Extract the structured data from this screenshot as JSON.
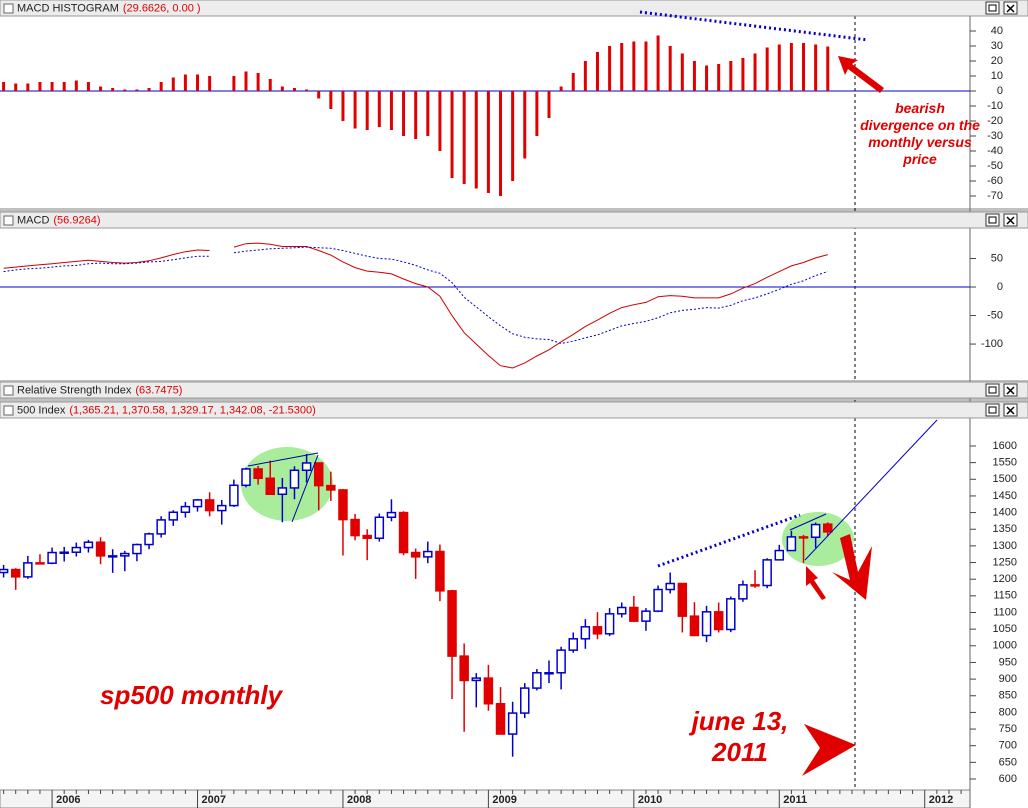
{
  "chart_data": [
    {
      "type": "bar",
      "title": "MACD HISTOGRAM",
      "readout": "(29.6626, 0.00 )",
      "color": "#e00000",
      "zero_line": true,
      "zero_color": "#0000cc",
      "ylim": [
        -78,
        50
      ],
      "yticks": [
        40,
        30,
        20,
        10,
        0,
        -10,
        -20,
        -30,
        -40,
        -50,
        -60,
        -70
      ],
      "annotation": "bearish divergence on the monthly versus price",
      "values": [
        6,
        5,
        5,
        6,
        6,
        6,
        7,
        6,
        3,
        2,
        1,
        1,
        2,
        6,
        9,
        11,
        11,
        10,
        null,
        10,
        13,
        12,
        8,
        3,
        2,
        1,
        -5,
        -12,
        -20,
        -25,
        -26,
        -24,
        -26,
        -30,
        -32,
        -30,
        -40,
        -58,
        -62,
        -65,
        -68,
        -70,
        -60,
        -45,
        -30,
        -18,
        3,
        12,
        20,
        26,
        30,
        32,
        33,
        33,
        37,
        30,
        25,
        20,
        17,
        18,
        20,
        22,
        25,
        29,
        31,
        32,
        32,
        31,
        29.6626,
        null,
        null,
        null,
        null,
        null,
        null,
        null,
        null,
        null,
        null,
        null
      ]
    },
    {
      "type": "line",
      "title": "MACD",
      "readout": "(56.9264)",
      "zero_line": true,
      "zero_color": "#0000cc",
      "ylim": [
        -163,
        100
      ],
      "yticks": [
        50,
        0,
        -50,
        -100
      ],
      "series": [
        {
          "color": "#d00000",
          "dash": false,
          "values": [
            33,
            35,
            37,
            39,
            41,
            43,
            45,
            47,
            45,
            43,
            42,
            43,
            46,
            51,
            57,
            62,
            65,
            64,
            null,
            70,
            76,
            77,
            75,
            71,
            71,
            71,
            64,
            56,
            44,
            34,
            28,
            26,
            23,
            14,
            6,
            0,
            -16,
            -50,
            -80,
            -100,
            -120,
            -138,
            -142,
            -133,
            -121,
            -110,
            -96,
            -83,
            -69,
            -58,
            -46,
            -36,
            -31,
            -27,
            -17,
            -15,
            -16,
            -19,
            -19,
            -19,
            -12,
            -2,
            6,
            17,
            27,
            37,
            43,
            51,
            56.9264,
            null,
            null,
            null,
            null,
            null,
            null,
            null,
            null,
            null,
            null,
            null
          ]
        },
        {
          "color": "#0000cc",
          "dash": true,
          "values": [
            27,
            30,
            32,
            33,
            35,
            37,
            38,
            41,
            42,
            41,
            41,
            42,
            44,
            45,
            48,
            51,
            54,
            54,
            null,
            60,
            63,
            65,
            67,
            68,
            69,
            70,
            69,
            68,
            64,
            59,
            54,
            50,
            49,
            44,
            38,
            30,
            24,
            8,
            -18,
            -35,
            -52,
            -68,
            -82,
            -88,
            -91,
            -92,
            -99,
            -95,
            -89,
            -84,
            -76,
            -68,
            -64,
            -60,
            -54,
            -45,
            -41,
            -39,
            -36,
            -37,
            -32,
            -24,
            -19,
            -12,
            -4,
            5,
            11,
            20,
            27.26,
            null,
            null,
            null,
            null,
            null,
            null,
            null,
            null,
            null,
            null,
            null
          ]
        }
      ]
    },
    {
      "type": "line",
      "title": "Relative Strength Index",
      "readout": "(63.7475)"
    },
    {
      "type": "candlestick",
      "title": "500 Index",
      "readout": "(1,365.21, 1,370.58, 1,329.17, 1,342.08, -21.5300)",
      "up_color": "#0000cc",
      "down_color": "#e00000",
      "ylim": [
        567,
        1678
      ],
      "yticks": [
        600,
        650,
        700,
        750,
        800,
        850,
        900,
        950,
        1000,
        1050,
        1100,
        1150,
        1200,
        1250,
        1300,
        1350,
        1400,
        1450,
        1500,
        1550,
        1600
      ],
      "annotations": [
        "sp500 monthly",
        "june 13, 2011"
      ],
      "categories": [
        null,
        null,
        null,
        null,
        "2006",
        null,
        null,
        null,
        null,
        null,
        null,
        null,
        null,
        null,
        null,
        null,
        "2007",
        null,
        null,
        null,
        null,
        null,
        null,
        null,
        null,
        null,
        null,
        null,
        "2008",
        null,
        null,
        null,
        null,
        null,
        null,
        null,
        null,
        null,
        null,
        null,
        "2009",
        null,
        null,
        null,
        null,
        null,
        null,
        null,
        null,
        null,
        null,
        null,
        "2010",
        null,
        null,
        null,
        null,
        null,
        null,
        null,
        null,
        null,
        null,
        null,
        "2011",
        null,
        null,
        null,
        null,
        null,
        null,
        null,
        null,
        null,
        null,
        null,
        "2012",
        null,
        null,
        null
      ],
      "open": [
        1220,
        1229,
        1207,
        1249,
        1248,
        1280,
        1281,
        1295,
        1311,
        1270,
        1270,
        1277,
        1304,
        1336,
        1378,
        1401,
        1418,
        1438,
        1406,
        1421,
        1482,
        1531,
        1503,
        1455,
        1474,
        1527,
        1549,
        1481,
        1468,
        1379,
        1331,
        1323,
        1386,
        1400,
        1280,
        1267,
        1283,
        1165,
        969,
        896,
        903,
        826,
        735,
        798,
        873,
        919,
        919,
        987,
        1021,
        1057,
        1036,
        1096,
        1115,
        1074,
        1104,
        1169,
        1187,
        1089,
        1031,
        1102,
        1049,
        1141,
        1183,
        1181,
        1258,
        1286,
        1327,
        1326,
        1365.21,
        null,
        null,
        null,
        null,
        null,
        null,
        null,
        null,
        null,
        null,
        null
      ],
      "high": [
        1243,
        1233,
        1270,
        1275,
        1295,
        1297,
        1310,
        1318,
        1326,
        1290,
        1285,
        1307,
        1340,
        1389,
        1407,
        1432,
        1441,
        1461,
        1438,
        1499,
        1535,
        1540,
        1556,
        1504,
        1539,
        1576,
        1549,
        1523,
        1471,
        1396,
        1350,
        1397,
        1440,
        1404,
        1292,
        1313,
        1304,
        1168,
        1007,
        918,
        943,
        876,
        832,
        888,
        930,
        956,
        997,
        1040,
        1080,
        1101,
        1113,
        1130,
        1150,
        1113,
        1181,
        1220,
        1188,
        1131,
        1120,
        1130,
        1148,
        1196,
        1227,
        1263,
        1303,
        1345,
        1333,
        1370,
        1370.58,
        null,
        null,
        null,
        null,
        null,
        null,
        null,
        null,
        null,
        null,
        null
      ],
      "low": [
        1205,
        1168,
        1201,
        1246,
        1245,
        1253,
        1268,
        1280,
        1245,
        1219,
        1224,
        1254,
        1290,
        1325,
        1360,
        1385,
        1403,
        1389,
        1364,
        1417,
        1476,
        1484,
        1454,
        1371,
        1440,
        1490,
        1407,
        1435,
        1271,
        1317,
        1257,
        1313,
        1374,
        1272,
        1201,
        1248,
        1134,
        840,
        742,
        815,
        805,
        735,
        667,
        783,
        866,
        888,
        869,
        979,
        991,
        1020,
        1029,
        1085,
        1071,
        1045,
        1101,
        1157,
        1040,
        1029,
        1011,
        1040,
        1041,
        1132,
        1174,
        1173,
        1257,
        1286,
        1249,
        1294,
        1329.17,
        null,
        null,
        null,
        null,
        null,
        null,
        null,
        null,
        null,
        null,
        null
      ],
      "close": [
        1229,
        1207,
        1249,
        1248,
        1280,
        1281,
        1295,
        1311,
        1270,
        1270,
        1277,
        1304,
        1336,
        1378,
        1401,
        1418,
        1438,
        1406,
        1421,
        1482,
        1531,
        1503,
        1455,
        1474,
        1527,
        1549,
        1481,
        1468,
        1379,
        1331,
        1323,
        1386,
        1400,
        1280,
        1267,
        1283,
        1165,
        969,
        896,
        903,
        826,
        735,
        798,
        873,
        919,
        919,
        987,
        1021,
        1057,
        1036,
        1096,
        1115,
        1074,
        1104,
        1169,
        1187,
        1089,
        1031,
        1102,
        1049,
        1141,
        1183,
        1181,
        1258,
        1286,
        1327,
        1326,
        1364,
        1342.08,
        null,
        null,
        null,
        null,
        null,
        null,
        null,
        null,
        null,
        null,
        null
      ]
    }
  ]
}
